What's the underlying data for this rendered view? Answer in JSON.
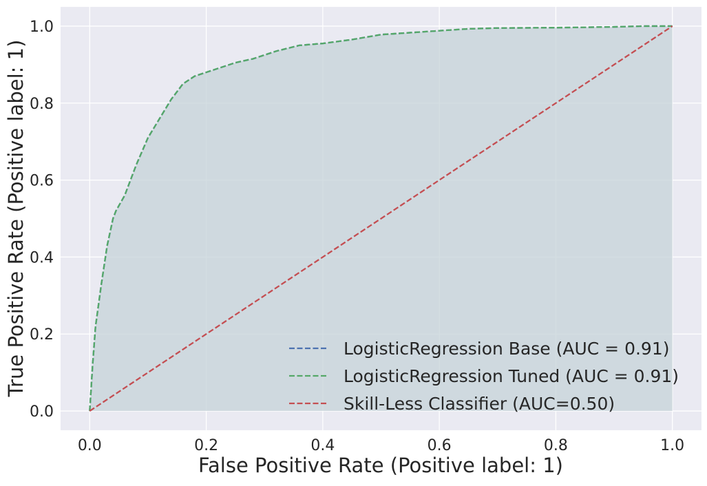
{
  "chart_data": {
    "type": "line",
    "title": "",
    "xlabel": "False Positive Rate (Positive label: 1)",
    "ylabel": "True Positive Rate (Positive label: 1)",
    "xlim": [
      -0.05,
      1.05
    ],
    "ylim": [
      -0.05,
      1.05
    ],
    "xticks": [
      0.0,
      0.2,
      0.4,
      0.6,
      0.8,
      1.0
    ],
    "yticks": [
      0.0,
      0.2,
      0.4,
      0.6,
      0.8,
      1.0
    ],
    "xtick_labels": [
      "0.0",
      "0.2",
      "0.4",
      "0.6",
      "0.8",
      "1.0"
    ],
    "ytick_labels": [
      "0.0",
      "0.2",
      "0.4",
      "0.6",
      "0.8",
      "1.0"
    ],
    "grid": true,
    "legend_position": "lower-right",
    "fill_under_curve": true,
    "colors": {
      "background": "#eaeaf2",
      "grid": "#ffffff",
      "fill": "#c5d3d8",
      "base": "#4c72b0",
      "tuned": "#55a868",
      "skill_less": "#c44e52"
    },
    "series": [
      {
        "name": "LogisticRegression Base (AUC = 0.91)",
        "color": "#4c72b0",
        "dash": "dashed",
        "x": [
          0.0,
          0.005,
          0.01,
          0.02,
          0.03,
          0.04,
          0.045,
          0.06,
          0.07,
          0.08,
          0.1,
          0.12,
          0.14,
          0.16,
          0.18,
          0.2,
          0.22,
          0.25,
          0.28,
          0.32,
          0.36,
          0.4,
          0.45,
          0.5,
          0.55,
          0.6,
          0.65,
          0.7,
          0.8,
          0.9,
          0.95,
          1.0
        ],
        "y": [
          0.0,
          0.12,
          0.22,
          0.33,
          0.43,
          0.5,
          0.52,
          0.56,
          0.6,
          0.64,
          0.71,
          0.76,
          0.81,
          0.85,
          0.87,
          0.88,
          0.89,
          0.905,
          0.915,
          0.935,
          0.95,
          0.955,
          0.965,
          0.978,
          0.983,
          0.988,
          0.993,
          0.995,
          0.996,
          0.998,
          1.0,
          1.0
        ]
      },
      {
        "name": "LogisticRegression Tuned (AUC = 0.91)",
        "color": "#55a868",
        "dash": "dashed",
        "x": [
          0.0,
          0.005,
          0.01,
          0.02,
          0.03,
          0.04,
          0.045,
          0.06,
          0.07,
          0.08,
          0.1,
          0.12,
          0.14,
          0.16,
          0.18,
          0.2,
          0.22,
          0.25,
          0.28,
          0.32,
          0.36,
          0.4,
          0.45,
          0.5,
          0.55,
          0.6,
          0.65,
          0.7,
          0.8,
          0.9,
          0.95,
          1.0
        ],
        "y": [
          0.0,
          0.12,
          0.22,
          0.33,
          0.43,
          0.5,
          0.52,
          0.56,
          0.6,
          0.64,
          0.71,
          0.76,
          0.81,
          0.85,
          0.87,
          0.88,
          0.89,
          0.905,
          0.915,
          0.935,
          0.95,
          0.955,
          0.965,
          0.978,
          0.983,
          0.988,
          0.993,
          0.995,
          0.996,
          0.998,
          1.0,
          1.0
        ]
      },
      {
        "name": "Skill-Less Classifier (AUC=0.50)",
        "color": "#c44e52",
        "dash": "dashed",
        "x": [
          0.0,
          1.0
        ],
        "y": [
          0.0,
          1.0
        ]
      }
    ]
  }
}
